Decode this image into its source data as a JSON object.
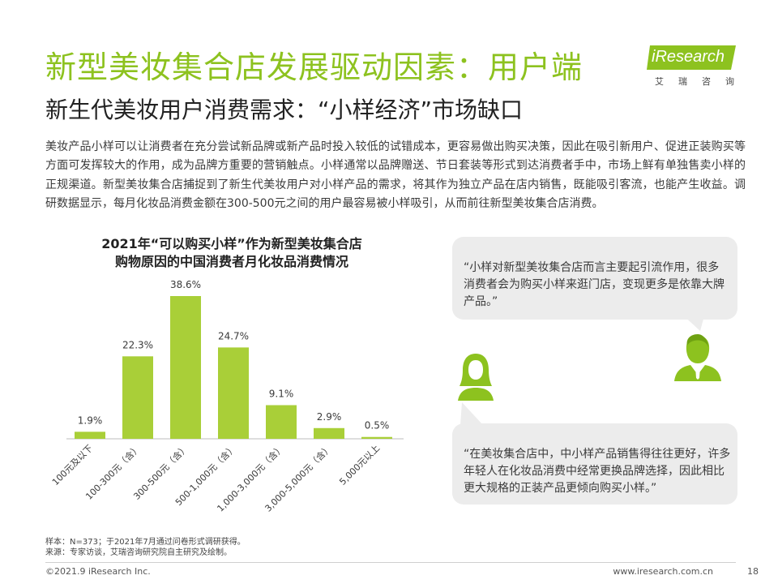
{
  "header": {
    "title": "新型美妆集合店发展驱动因素：用户端",
    "subtitle": "新生代美妆用户消费需求：“小样经济”市场缺口"
  },
  "logo": {
    "name": "iResearch",
    "sub": "艾瑞咨询"
  },
  "intro": "美妆产品小样可以让消费者在充分尝试新品牌或新产品时投入较低的试错成本，更容易做出购买决策，因此在吸引新用户、促进正装购买等方面可发挥较大的作用，成为品牌方重要的营销触点。小样通常以品牌赠送、节日套装等形式到达消费者手中，市场上鲜有单独售卖小样的正规渠道。新型美妆集合店捕捉到了新生代美妆用户对小样产品的需求，将其作为独立产品在店内销售，既能吸引客流，也能产生收益。调研数据显示，每月化妆品消费金额在300-500元之间的用户最容易被小样吸引，从而前往新型美妆集合店消费。",
  "chart_data": {
    "type": "bar",
    "title_line1": "2021年“可以购买小样”作为新型美妆集合店",
    "title_line2": "购物原因的中国消费者月化妆品消费情况",
    "categories": [
      "100元及以下",
      "100-300元（含）",
      "300-500元（含）",
      "500-1,000元（含）",
      "1,000-3,000元（含）",
      "3,000-5,000元（含）",
      "5,000元以上"
    ],
    "values": [
      1.9,
      22.3,
      38.6,
      24.7,
      9.1,
      2.9,
      0.5
    ],
    "value_labels": [
      "1.9%",
      "22.3%",
      "38.6%",
      "24.7%",
      "9.1%",
      "2.9%",
      "0.5%"
    ],
    "ylim": [
      0,
      38.6
    ],
    "color": "#a9cf38",
    "grid": false,
    "legend": "none"
  },
  "quotes": {
    "quote1": "“小样对新型美妆集合店而言主要起引流作用，很多消费者会为购买小样来逛门店，变现更多是依靠大牌产品。”",
    "quote2": "“在美妆集合店中，中小样产品销售得往往更好，许多年轻人在化妆品消费中经常更换品牌选择，因此相比更大规格的正装产品更倾向购买小样。”"
  },
  "notes": {
    "sample": "样本：N=373；于2021年7月通过问卷形式调研获得。",
    "source": "来源：专家访谈，艾瑞咨询研究院自主研究及绘制。"
  },
  "footer": {
    "copyright": "©2021.9 iResearch Inc.",
    "site": "www.iresearch.com.cn",
    "page": "18"
  },
  "colors": {
    "accent": "#8dc21f",
    "bar": "#a9cf38",
    "bubble": "#ececec"
  }
}
